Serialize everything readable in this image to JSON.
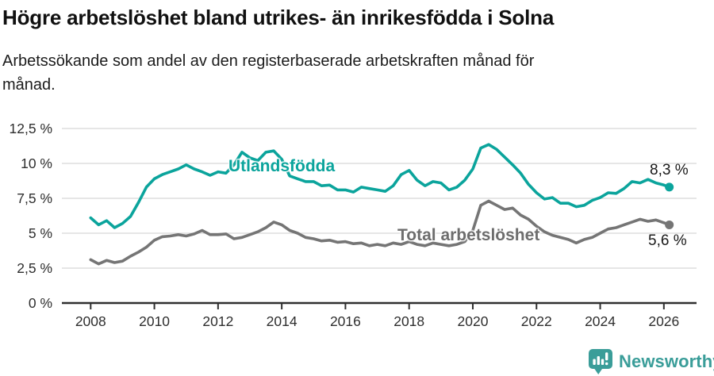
{
  "header": {
    "title": "Högre arbetslöshet bland utrikes- än inrikesfödda i Solna",
    "subtitle_line1": "Arbetssökande som andel av den registerbaserade arbetskraften månad för",
    "subtitle_line2": "månad."
  },
  "footer": {
    "brand": "Newsworthy",
    "brand_color": "#3a9d99"
  },
  "chart_data": {
    "type": "line",
    "title": "Högre arbetslöshet bland utrikes- än inrikesfödda i Solna",
    "subtitle": "Arbetssökande som andel av den registerbaserade arbetskraften månad för månad.",
    "grid": true,
    "grid_color": "#d8d8d8",
    "axis_color": "#2f2f2f",
    "x_axis": {
      "unit": "year (decimal; underlying series is monthly)",
      "range": [
        2007.1,
        2027.3
      ],
      "ticks": [
        2008,
        2010,
        2012,
        2014,
        2016,
        2018,
        2020,
        2022,
        2024,
        2026
      ],
      "tick_labels": [
        "2008",
        "2010",
        "2012",
        "2014",
        "2016",
        "2018",
        "2020",
        "2022",
        "2024",
        "2026"
      ]
    },
    "y_axis": {
      "unit": "%",
      "range": [
        0,
        13.1
      ],
      "ticks": [
        0,
        2.5,
        5,
        7.5,
        10,
        12.5
      ],
      "tick_labels": [
        "0 %",
        "2,5 %",
        "5 %",
        "7,5 %",
        "10 %",
        "12,5 %"
      ]
    },
    "series": [
      {
        "name": "Utlandsfödda",
        "color": "#0ba49c",
        "end_label": "8,3 %",
        "end_value": 8.3,
        "points": [
          [
            2008.0,
            6.1
          ],
          [
            2008.25,
            5.6
          ],
          [
            2008.5,
            5.9
          ],
          [
            2008.75,
            5.4
          ],
          [
            2009.0,
            5.7
          ],
          [
            2009.25,
            6.2
          ],
          [
            2009.5,
            7.2
          ],
          [
            2009.75,
            8.3
          ],
          [
            2010.0,
            8.9
          ],
          [
            2010.25,
            9.2
          ],
          [
            2010.5,
            9.4
          ],
          [
            2010.75,
            9.6
          ],
          [
            2011.0,
            9.9
          ],
          [
            2011.25,
            9.6
          ],
          [
            2011.5,
            9.4
          ],
          [
            2011.75,
            9.15
          ],
          [
            2012.0,
            9.4
          ],
          [
            2012.25,
            9.3
          ],
          [
            2012.5,
            9.9
          ],
          [
            2012.75,
            10.8
          ],
          [
            2013.0,
            10.4
          ],
          [
            2013.25,
            10.2
          ],
          [
            2013.5,
            10.8
          ],
          [
            2013.75,
            10.9
          ],
          [
            2014.0,
            10.3
          ],
          [
            2014.25,
            9.1
          ],
          [
            2014.5,
            8.9
          ],
          [
            2014.75,
            8.7
          ],
          [
            2015.0,
            8.7
          ],
          [
            2015.25,
            8.4
          ],
          [
            2015.5,
            8.45
          ],
          [
            2015.75,
            8.1
          ],
          [
            2016.0,
            8.1
          ],
          [
            2016.25,
            7.95
          ],
          [
            2016.5,
            8.3
          ],
          [
            2016.75,
            8.2
          ],
          [
            2017.0,
            8.1
          ],
          [
            2017.25,
            8.0
          ],
          [
            2017.5,
            8.4
          ],
          [
            2017.75,
            9.2
          ],
          [
            2018.0,
            9.5
          ],
          [
            2018.25,
            8.8
          ],
          [
            2018.5,
            8.4
          ],
          [
            2018.75,
            8.7
          ],
          [
            2019.0,
            8.6
          ],
          [
            2019.25,
            8.1
          ],
          [
            2019.5,
            8.3
          ],
          [
            2019.75,
            8.8
          ],
          [
            2020.0,
            9.6
          ],
          [
            2020.25,
            11.1
          ],
          [
            2020.5,
            11.35
          ],
          [
            2020.75,
            11.0
          ],
          [
            2021.0,
            10.45
          ],
          [
            2021.25,
            9.9
          ],
          [
            2021.5,
            9.3
          ],
          [
            2021.75,
            8.5
          ],
          [
            2022.0,
            7.9
          ],
          [
            2022.25,
            7.45
          ],
          [
            2022.5,
            7.55
          ],
          [
            2022.75,
            7.15
          ],
          [
            2023.0,
            7.15
          ],
          [
            2023.25,
            6.9
          ],
          [
            2023.5,
            7.0
          ],
          [
            2023.75,
            7.35
          ],
          [
            2024.0,
            7.55
          ],
          [
            2024.25,
            7.9
          ],
          [
            2024.5,
            7.85
          ],
          [
            2024.75,
            8.2
          ],
          [
            2025.0,
            8.7
          ],
          [
            2025.25,
            8.6
          ],
          [
            2025.5,
            8.85
          ],
          [
            2025.75,
            8.6
          ],
          [
            2026.0,
            8.45
          ],
          [
            2026.17,
            8.3
          ]
        ]
      },
      {
        "name": "Total arbetslöshet",
        "color": "#757575",
        "end_label": "5,6 %",
        "end_value": 5.6,
        "points": [
          [
            2008.0,
            3.1
          ],
          [
            2008.25,
            2.8
          ],
          [
            2008.5,
            3.05
          ],
          [
            2008.75,
            2.9
          ],
          [
            2009.0,
            3.0
          ],
          [
            2009.25,
            3.35
          ],
          [
            2009.5,
            3.65
          ],
          [
            2009.75,
            4.0
          ],
          [
            2010.0,
            4.5
          ],
          [
            2010.25,
            4.75
          ],
          [
            2010.5,
            4.8
          ],
          [
            2010.75,
            4.9
          ],
          [
            2011.0,
            4.8
          ],
          [
            2011.25,
            4.95
          ],
          [
            2011.5,
            5.2
          ],
          [
            2011.75,
            4.9
          ],
          [
            2012.0,
            4.9
          ],
          [
            2012.25,
            4.95
          ],
          [
            2012.5,
            4.6
          ],
          [
            2012.75,
            4.7
          ],
          [
            2013.0,
            4.9
          ],
          [
            2013.25,
            5.1
          ],
          [
            2013.5,
            5.4
          ],
          [
            2013.75,
            5.8
          ],
          [
            2014.0,
            5.6
          ],
          [
            2014.25,
            5.2
          ],
          [
            2014.5,
            5.0
          ],
          [
            2014.75,
            4.7
          ],
          [
            2015.0,
            4.6
          ],
          [
            2015.25,
            4.45
          ],
          [
            2015.5,
            4.5
          ],
          [
            2015.75,
            4.35
          ],
          [
            2016.0,
            4.4
          ],
          [
            2016.25,
            4.25
          ],
          [
            2016.5,
            4.3
          ],
          [
            2016.75,
            4.1
          ],
          [
            2017.0,
            4.2
          ],
          [
            2017.25,
            4.1
          ],
          [
            2017.5,
            4.3
          ],
          [
            2017.75,
            4.2
          ],
          [
            2018.0,
            4.4
          ],
          [
            2018.25,
            4.2
          ],
          [
            2018.5,
            4.1
          ],
          [
            2018.75,
            4.3
          ],
          [
            2019.0,
            4.2
          ],
          [
            2019.25,
            4.1
          ],
          [
            2019.5,
            4.2
          ],
          [
            2019.75,
            4.4
          ],
          [
            2020.0,
            5.2
          ],
          [
            2020.25,
            7.0
          ],
          [
            2020.5,
            7.3
          ],
          [
            2020.75,
            7.0
          ],
          [
            2021.0,
            6.7
          ],
          [
            2021.25,
            6.8
          ],
          [
            2021.5,
            6.3
          ],
          [
            2021.75,
            6.0
          ],
          [
            2022.0,
            5.5
          ],
          [
            2022.25,
            5.1
          ],
          [
            2022.5,
            4.85
          ],
          [
            2022.75,
            4.7
          ],
          [
            2023.0,
            4.55
          ],
          [
            2023.25,
            4.3
          ],
          [
            2023.5,
            4.55
          ],
          [
            2023.75,
            4.7
          ],
          [
            2024.0,
            5.0
          ],
          [
            2024.25,
            5.3
          ],
          [
            2024.5,
            5.4
          ],
          [
            2024.75,
            5.6
          ],
          [
            2025.0,
            5.8
          ],
          [
            2025.25,
            6.0
          ],
          [
            2025.5,
            5.85
          ],
          [
            2025.75,
            5.95
          ],
          [
            2026.0,
            5.75
          ],
          [
            2026.17,
            5.6
          ]
        ]
      }
    ],
    "legend_position": "inline-labels"
  }
}
